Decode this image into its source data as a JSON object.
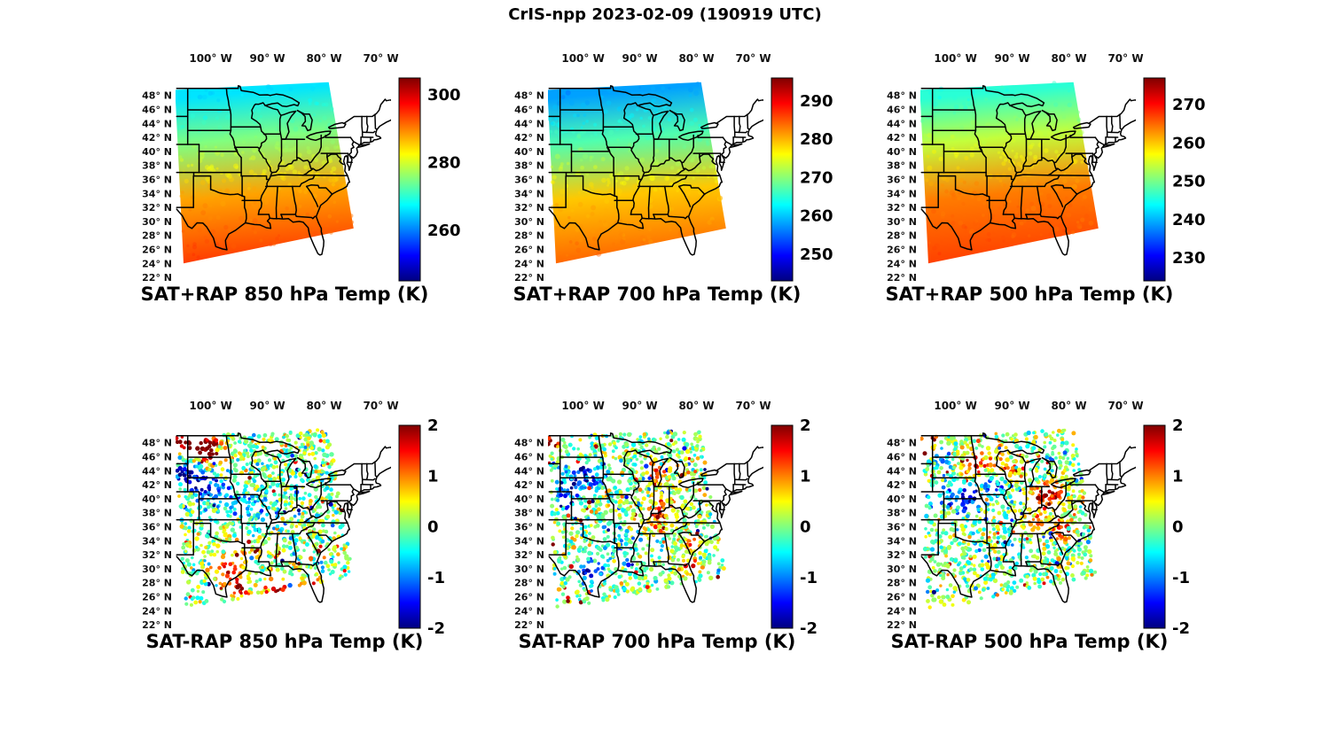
{
  "figure": {
    "title": "CrIS-npp 2023-02-09 (190919 UTC)",
    "satellite": "CrIS-npp",
    "date": "2023-02-09",
    "time_utc": "190919 UTC",
    "background_color": "#ffffff"
  },
  "axes": {
    "lon_ticks": [
      "100° W",
      "90° W",
      "80° W",
      "70° W"
    ],
    "lon_tick_values": [
      -100,
      -90,
      -80,
      -70
    ],
    "lat_ticks": [
      "48° N",
      "46° N",
      "44° N",
      "42° N",
      "40° N",
      "38° N",
      "36° N",
      "34° N",
      "32° N",
      "30° N",
      "28° N",
      "26° N",
      "24° N",
      "22° N"
    ],
    "lat_tick_values": [
      48,
      46,
      44,
      42,
      40,
      38,
      36,
      34,
      32,
      30,
      28,
      26,
      24,
      22
    ],
    "lon_range": [
      -106.2,
      -68.2
    ],
    "lat_range": [
      21.5,
      50.5
    ],
    "grid": false,
    "swath_corners_lonlat": [
      [
        -106.3,
        48.8
      ],
      [
        -79.2,
        49.9
      ],
      [
        -74.8,
        29.0
      ],
      [
        -104.8,
        24.0
      ]
    ]
  },
  "chart_data": [
    {
      "type": "heatmap",
      "kind": "SAT+RAP",
      "level_hPa": 850,
      "variable": "Temperature",
      "units": "K",
      "title": "SAT+RAP 850 hPa Temp (K)",
      "colorbar": {
        "colormap": "jet",
        "min": 245,
        "max": 305,
        "ticks": [
          260,
          280,
          300
        ]
      },
      "field_gradient": [
        {
          "lat": 48.5,
          "value": 266
        },
        {
          "lat": 42.0,
          "value": 275
        },
        {
          "lat": 34.0,
          "value": 288
        },
        {
          "lat": 25.0,
          "value": 294
        }
      ],
      "field_description": "Smooth satellite swath: ~265 K cyan in the north/northwest grading to ~294 K orange along the Gulf coast"
    },
    {
      "type": "heatmap",
      "kind": "SAT+RAP",
      "level_hPa": 700,
      "variable": "Temperature",
      "units": "K",
      "title": "SAT+RAP 700 hPa Temp (K)",
      "colorbar": {
        "colormap": "jet",
        "min": 243,
        "max": 296,
        "ticks": [
          250,
          260,
          270,
          280,
          290
        ]
      },
      "field_gradient": [
        {
          "lat": 48.5,
          "value": 258
        },
        {
          "lat": 42.0,
          "value": 267
        },
        {
          "lat": 34.0,
          "value": 279
        },
        {
          "lat": 25.0,
          "value": 284
        }
      ],
      "field_description": "Cyan ~258 K north grading to yellow-orange ~284 K south"
    },
    {
      "type": "heatmap",
      "kind": "SAT+RAP",
      "level_hPa": 500,
      "variable": "Temperature",
      "units": "K",
      "title": "SAT+RAP 500 hPa Temp (K)",
      "colorbar": {
        "colormap": "jet",
        "min": 224,
        "max": 277,
        "ticks": [
          230,
          240,
          250,
          260,
          270
        ]
      },
      "field_gradient": [
        {
          "lat": 48.5,
          "value": 246
        },
        {
          "lat": 42.0,
          "value": 254
        },
        {
          "lat": 34.0,
          "value": 264
        },
        {
          "lat": 25.0,
          "value": 267
        }
      ],
      "field_description": "Cyan ~246 K north grading to yellow-orange ~267 K south"
    },
    {
      "type": "heatmap",
      "kind": "SAT-RAP",
      "level_hPa": 850,
      "variable": "Temperature difference",
      "units": "K",
      "title": "SAT-RAP 850 hPa Temp (K)",
      "colorbar": {
        "colormap": "jet",
        "min": -2,
        "max": 2,
        "ticks": [
          -2,
          -1,
          0,
          1,
          2
        ]
      },
      "noise_sigma": 0.5,
      "anomaly_clusters": [
        {
          "lon": -103.5,
          "lat": 48.0,
          "radius": 2.6,
          "value": 2.2
        },
        {
          "lon": -99.5,
          "lat": 46.8,
          "radius": 2.0,
          "value": 1.8
        },
        {
          "lon": -104.5,
          "lat": 44.0,
          "radius": 1.8,
          "value": -2.0
        },
        {
          "lon": -101.5,
          "lat": 42.0,
          "radius": 2.2,
          "value": -1.6
        },
        {
          "lon": -97.0,
          "lat": 40.0,
          "radius": 2.2,
          "value": -0.9
        },
        {
          "lon": -91.5,
          "lat": 38.5,
          "radius": 3.0,
          "value": -0.7
        },
        {
          "lon": -97.5,
          "lat": 30.0,
          "radius": 1.6,
          "value": 1.4
        },
        {
          "lon": -95.5,
          "lat": 27.5,
          "radius": 1.6,
          "value": 2.2
        },
        {
          "lon": -88.5,
          "lat": 26.5,
          "radius": 1.8,
          "value": 2.2
        },
        {
          "lon": -82.3,
          "lat": 27.3,
          "radius": 1.3,
          "value": 2.2
        },
        {
          "lon": -94.0,
          "lat": 33.0,
          "radius": 2.2,
          "value": 0.8
        }
      ],
      "field_description": "Speckled differences mostly within ±1 K; strong warm (dark red) patch in the far northwest, cold (blue) cluster over the high plains, warm spots along the Gulf and Florida coasts"
    },
    {
      "type": "heatmap",
      "kind": "SAT-RAP",
      "level_hPa": 700,
      "variable": "Temperature difference",
      "units": "K",
      "title": "SAT-RAP 700 hPa Temp (K)",
      "colorbar": {
        "colormap": "jet",
        "min": -2,
        "max": 2,
        "ticks": [
          -2,
          -1,
          0,
          1,
          2
        ]
      },
      "noise_sigma": 0.5,
      "anomaly_clusters": [
        {
          "lon": -105.6,
          "lat": 48.7,
          "radius": 1.2,
          "value": 2.2
        },
        {
          "lon": -87.3,
          "lat": 43.8,
          "radius": 1.4,
          "value": 1.6
        },
        {
          "lon": -85.8,
          "lat": 38.8,
          "radius": 2.0,
          "value": 1.4
        },
        {
          "lon": -87.8,
          "lat": 36.3,
          "radius": 1.8,
          "value": 1.0
        },
        {
          "lon": -99.5,
          "lat": 43.5,
          "radius": 2.4,
          "value": -1.4
        },
        {
          "lon": -103.0,
          "lat": 40.5,
          "radius": 2.0,
          "value": -1.2
        },
        {
          "lon": -99.0,
          "lat": 29.5,
          "radius": 1.8,
          "value": -1.6
        },
        {
          "lon": -94.5,
          "lat": 33.5,
          "radius": 2.0,
          "value": -0.8
        },
        {
          "lon": -81.3,
          "lat": 30.3,
          "radius": 1.2,
          "value": 1.8
        },
        {
          "lon": -80.8,
          "lat": 33.5,
          "radius": 1.2,
          "value": 1.2
        }
      ],
      "field_description": "Speckled differences mostly within ±1 K; small dark-red corner patch northwest, warm streaks near the Great Lakes and Ohio valley, cool dots over the plains and south Texas"
    },
    {
      "type": "heatmap",
      "kind": "SAT-RAP",
      "level_hPa": 500,
      "variable": "Temperature difference",
      "units": "K",
      "title": "SAT-RAP 500 hPa Temp (K)",
      "colorbar": {
        "colormap": "jet",
        "min": -2,
        "max": 2,
        "ticks": [
          -2,
          -1,
          0,
          1,
          2
        ]
      },
      "noise_sigma": 0.5,
      "anomaly_clusters": [
        {
          "lon": -104.8,
          "lat": 48.4,
          "radius": 1.4,
          "value": 2.2
        },
        {
          "lon": -96.5,
          "lat": 44.8,
          "radius": 2.4,
          "value": 1.8
        },
        {
          "lon": -90.5,
          "lat": 44.2,
          "radius": 2.0,
          "value": 1.4
        },
        {
          "lon": -83.5,
          "lat": 40.5,
          "radius": 2.2,
          "value": 1.8
        },
        {
          "lon": -86.0,
          "lat": 36.5,
          "radius": 1.8,
          "value": 1.2
        },
        {
          "lon": -98.5,
          "lat": 40.5,
          "radius": 2.4,
          "value": -1.6
        },
        {
          "lon": -93.5,
          "lat": 42.5,
          "radius": 2.0,
          "value": -1.5
        },
        {
          "lon": -101.5,
          "lat": 45.5,
          "radius": 1.8,
          "value": -1.2
        },
        {
          "lon": -80.8,
          "lat": 35.5,
          "radius": 1.5,
          "value": 1.6
        },
        {
          "lon": -89.5,
          "lat": 33.5,
          "radius": 2.2,
          "value": -0.5
        }
      ],
      "field_description": "Noisier field with more red: warm streaks across the upper Midwest and Ohio valley, many deep-blue dots in the northern center"
    }
  ]
}
